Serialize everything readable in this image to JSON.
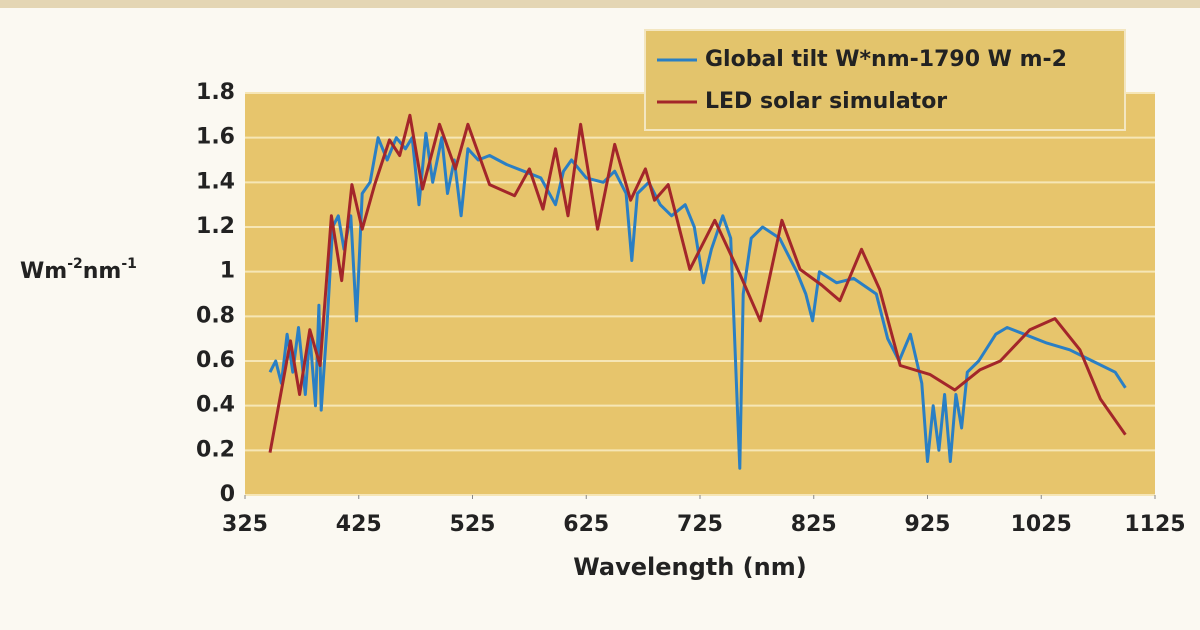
{
  "chart_data": {
    "type": "line",
    "ylabel": [
      "Wm",
      "-2",
      "nm",
      "-1"
    ],
    "xlabel": "Wavelength (nm)",
    "xlim": [
      325,
      1125
    ],
    "xticks": [
      325,
      425,
      525,
      625,
      725,
      825,
      925,
      1025,
      1125
    ],
    "ylim": [
      0,
      1.8
    ],
    "yticks": [
      0,
      0.2,
      0.4,
      0.6,
      0.8,
      1,
      1.2,
      1.4,
      1.6,
      1.8
    ],
    "grid": true,
    "legend": "top-right",
    "series": [
      {
        "name": "Global tilt W*nm-1790 W m-2",
        "color": "#2a7fc4",
        "x": [
          347,
          352,
          357,
          362,
          367,
          372,
          378,
          382,
          387,
          390,
          392,
          397,
          402,
          407,
          412,
          418,
          423,
          428,
          435,
          442,
          450,
          458,
          466,
          472,
          478,
          484,
          490,
          498,
          503,
          509,
          515,
          521,
          530,
          540,
          555,
          570,
          585,
          598,
          605,
          612,
          625,
          640,
          650,
          660,
          665,
          670,
          680,
          690,
          700,
          712,
          720,
          728,
          735,
          745,
          752,
          757,
          760,
          763,
          770,
          780,
          795,
          810,
          818,
          824,
          830,
          845,
          860,
          880,
          890,
          900,
          910,
          920,
          925,
          930,
          935,
          940,
          945,
          950,
          955,
          960,
          970,
          985,
          995,
          1010,
          1030,
          1050,
          1070,
          1090,
          1099
        ],
        "values": [
          0.55,
          0.6,
          0.5,
          0.72,
          0.55,
          0.75,
          0.45,
          0.72,
          0.4,
          0.85,
          0.38,
          0.75,
          1.2,
          1.25,
          1.1,
          1.25,
          0.78,
          1.35,
          1.4,
          1.6,
          1.5,
          1.6,
          1.55,
          1.6,
          1.3,
          1.62,
          1.4,
          1.6,
          1.35,
          1.5,
          1.25,
          1.55,
          1.5,
          1.52,
          1.48,
          1.45,
          1.42,
          1.3,
          1.45,
          1.5,
          1.42,
          1.4,
          1.45,
          1.35,
          1.05,
          1.35,
          1.4,
          1.3,
          1.25,
          1.3,
          1.2,
          0.95,
          1.1,
          1.25,
          1.15,
          0.5,
          0.12,
          0.9,
          1.15,
          1.2,
          1.15,
          1.0,
          0.9,
          0.78,
          1.0,
          0.95,
          0.97,
          0.9,
          0.7,
          0.6,
          0.72,
          0.5,
          0.15,
          0.4,
          0.2,
          0.45,
          0.15,
          0.45,
          0.3,
          0.55,
          0.6,
          0.72,
          0.75,
          0.72,
          0.68,
          0.65,
          0.6,
          0.55,
          0.48
        ]
      },
      {
        "name": "LED solar simulator",
        "color": "#a3262a",
        "x": [
          347,
          365,
          373,
          382,
          391,
          401,
          410,
          419,
          428,
          439,
          452,
          461,
          470,
          481,
          496,
          510,
          521,
          540,
          562,
          575,
          587,
          598,
          609,
          620,
          635,
          650,
          664,
          677,
          685,
          697,
          716,
          738,
          760,
          778,
          797,
          813,
          832,
          848,
          867,
          883,
          901,
          927,
          949,
          971,
          989,
          1015,
          1037,
          1059,
          1077,
          1099
        ],
        "values": [
          0.19,
          0.69,
          0.45,
          0.74,
          0.58,
          1.25,
          0.96,
          1.39,
          1.19,
          1.39,
          1.59,
          1.52,
          1.7,
          1.37,
          1.66,
          1.46,
          1.66,
          1.39,
          1.34,
          1.46,
          1.28,
          1.55,
          1.25,
          1.66,
          1.19,
          1.57,
          1.32,
          1.46,
          1.32,
          1.39,
          1.01,
          1.23,
          0.99,
          0.78,
          1.23,
          1.01,
          0.94,
          0.87,
          1.1,
          0.92,
          0.58,
          0.54,
          0.47,
          0.56,
          0.6,
          0.74,
          0.79,
          0.65,
          0.43,
          0.27
        ]
      }
    ]
  }
}
